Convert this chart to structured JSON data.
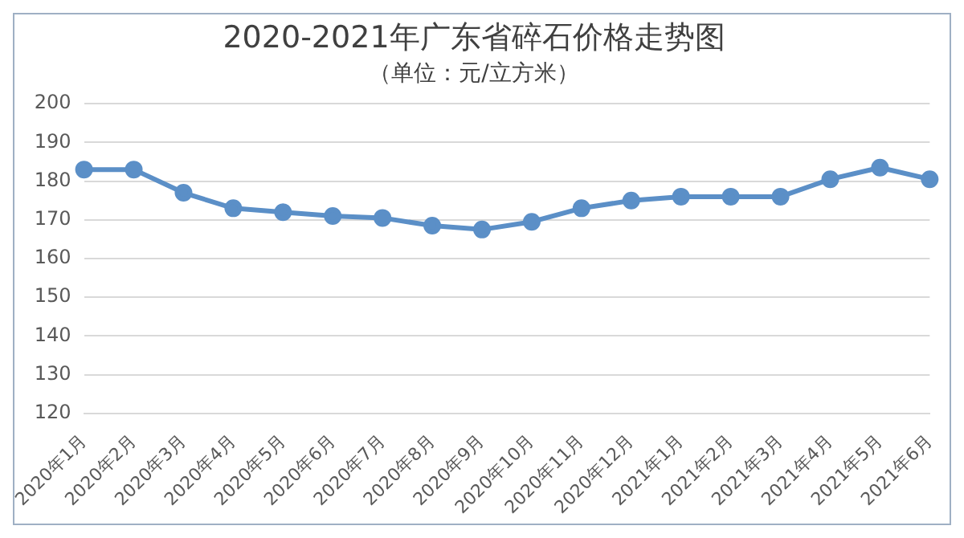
{
  "chart_data": {
    "type": "line",
    "title": "2020-2021年广东省碎石价格走势图",
    "subtitle": "（单位：元/立方米）",
    "categories": [
      "2020年1月",
      "2020年2月",
      "2020年3月",
      "2020年4月",
      "2020年5月",
      "2020年6月",
      "2020年7月",
      "2020年8月",
      "2020年9月",
      "2020年10月",
      "2020年11月",
      "2020年12月",
      "2021年1月",
      "2021年2月",
      "2021年3月",
      "2021年4月",
      "2021年5月",
      "2021年6月"
    ],
    "series": [
      {
        "color": "#5b8fc7",
        "values": [
          183,
          183,
          177,
          173,
          172,
          171,
          170.5,
          168.5,
          167.5,
          169.5,
          173,
          175,
          176,
          176,
          176,
          180.5,
          183.5,
          180.5
        ]
      }
    ],
    "ylim": [
      120,
      200
    ],
    "yticks": [
      120,
      130,
      140,
      150,
      160,
      170,
      180,
      190,
      200
    ],
    "grid": "y",
    "legend": false,
    "marker": "circle",
    "line_style": "solid"
  }
}
